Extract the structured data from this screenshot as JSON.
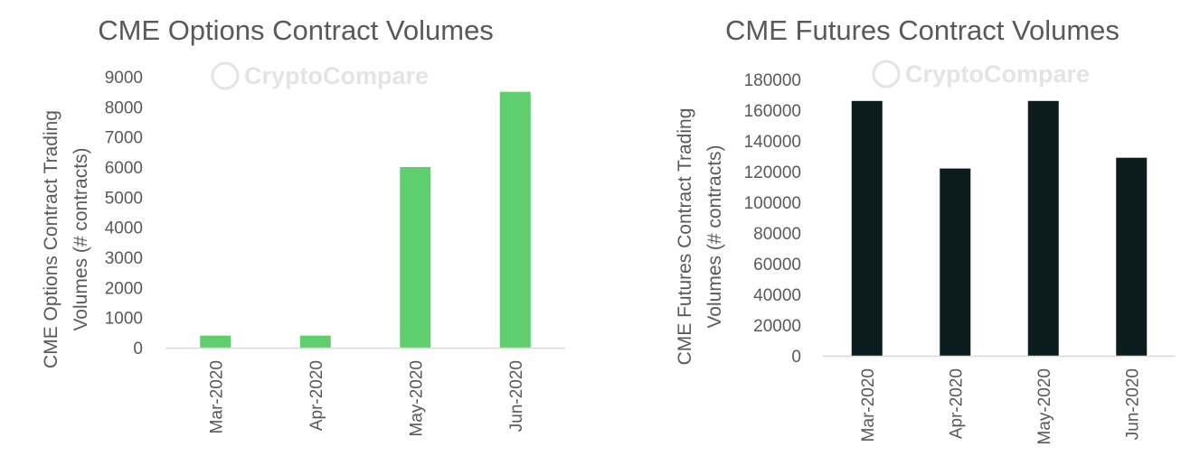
{
  "watermark": "CryptoCompare",
  "chart_data": [
    {
      "type": "bar",
      "title": "CME Options Contract Volumes",
      "ylabel": "CME Options Contract Trading Volumes (# contracts)",
      "xlabel": "",
      "categories": [
        "Mar-2020",
        "Apr-2020",
        "May-2020",
        "Jun-2020"
      ],
      "values": [
        400,
        400,
        6000,
        8500
      ],
      "ylim": [
        0,
        9000
      ],
      "yticks": [
        0,
        1000,
        2000,
        3000,
        4000,
        5000,
        6000,
        7000,
        8000,
        9000
      ],
      "color": "#5fcf6e",
      "grid": false
    },
    {
      "type": "bar",
      "title": "CME Futures Contract Volumes",
      "ylabel": "CME Futures Contract Trading Volumes (# contracts)",
      "xlabel": "",
      "categories": [
        "Mar-2020",
        "Apr-2020",
        "May-2020",
        "Jun-2020"
      ],
      "values": [
        166000,
        122000,
        166000,
        129000
      ],
      "ylim": [
        0,
        180000
      ],
      "yticks": [
        0,
        20000,
        40000,
        60000,
        80000,
        100000,
        120000,
        140000,
        160000,
        180000
      ],
      "color": "#0c1b1e",
      "grid": false
    }
  ]
}
